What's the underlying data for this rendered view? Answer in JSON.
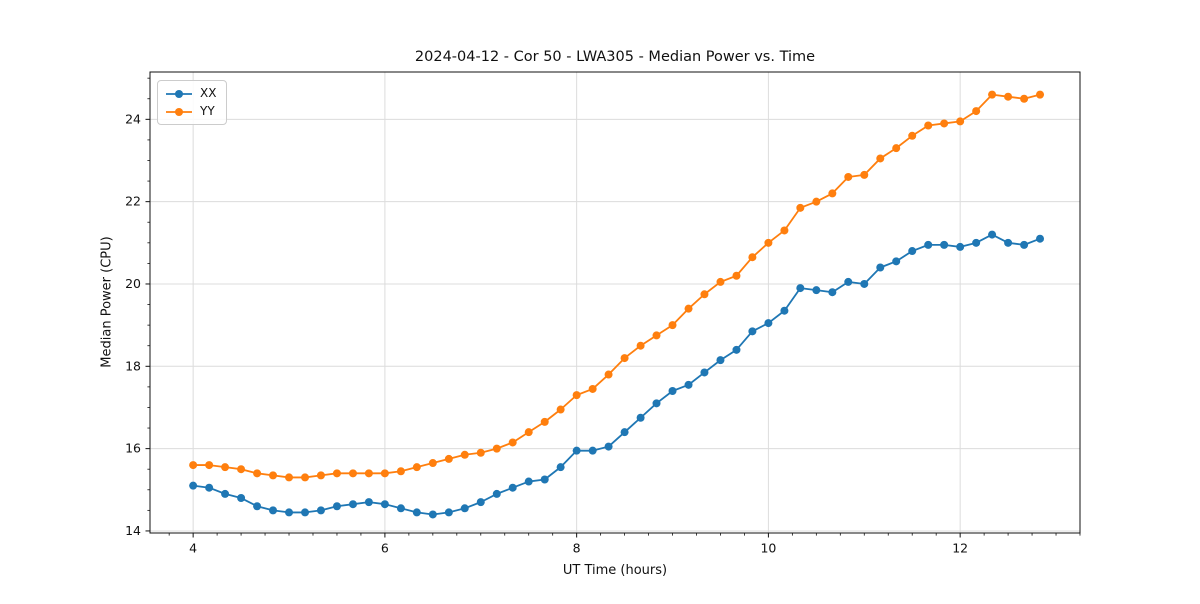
{
  "figure": {
    "title": "2024-04-12 - Cor 50 - LWA305 - Median Power vs. Time"
  },
  "chart_data": {
    "type": "line",
    "title": "2024-04-12 - Cor 50 - LWA305 - Median Power vs. Time",
    "xlabel": "UT Time (hours)",
    "ylabel": "Median Power (CPU)",
    "x": [
      4.0,
      4.167,
      4.333,
      4.5,
      4.667,
      4.833,
      5.0,
      5.167,
      5.333,
      5.5,
      5.667,
      5.833,
      6.0,
      6.167,
      6.333,
      6.5,
      6.667,
      6.833,
      7.0,
      7.167,
      7.333,
      7.5,
      7.667,
      7.833,
      8.0,
      8.167,
      8.333,
      8.5,
      8.667,
      8.833,
      9.0,
      9.167,
      9.333,
      9.5,
      9.667,
      9.833,
      10.0,
      10.167,
      10.333,
      10.5,
      10.667,
      10.833,
      11.0,
      11.167,
      11.333,
      11.5,
      11.667,
      11.833,
      12.0,
      12.167,
      12.333,
      12.5,
      12.667,
      12.833
    ],
    "series": [
      {
        "name": "XX",
        "color": "#1f77b4",
        "values": [
          15.1,
          15.05,
          14.9,
          14.8,
          14.6,
          14.5,
          14.45,
          14.45,
          14.5,
          14.6,
          14.65,
          14.7,
          14.65,
          14.55,
          14.45,
          14.4,
          14.45,
          14.55,
          14.7,
          14.9,
          15.05,
          15.2,
          15.25,
          15.55,
          15.95,
          15.95,
          16.05,
          16.4,
          16.75,
          17.1,
          17.4,
          17.55,
          17.85,
          18.15,
          18.4,
          18.85,
          19.05,
          19.35,
          19.9,
          19.85,
          19.8,
          20.05,
          20.0,
          20.4,
          20.55,
          20.8,
          20.95,
          20.95,
          20.9,
          21.0,
          21.2,
          21.0,
          20.95,
          21.1
        ]
      },
      {
        "name": "YY",
        "color": "#ff7f0e",
        "values": [
          15.6,
          15.6,
          15.55,
          15.5,
          15.4,
          15.35,
          15.3,
          15.3,
          15.35,
          15.4,
          15.4,
          15.4,
          15.4,
          15.45,
          15.55,
          15.65,
          15.75,
          15.85,
          15.9,
          16.0,
          16.15,
          16.4,
          16.65,
          16.95,
          17.3,
          17.45,
          17.8,
          18.2,
          18.5,
          18.75,
          19.0,
          19.4,
          19.75,
          20.05,
          20.2,
          20.65,
          21.0,
          21.3,
          21.85,
          22.0,
          22.2,
          22.6,
          22.65,
          23.05,
          23.3,
          23.6,
          23.85,
          23.9,
          23.95,
          24.2,
          24.6,
          24.55,
          24.5,
          24.6
        ]
      }
    ],
    "xlim": [
      3.55,
      13.25
    ],
    "ylim": [
      13.95,
      25.15
    ],
    "xticks": [
      4,
      6,
      8,
      10,
      12
    ],
    "yticks": [
      14,
      16,
      18,
      20,
      22,
      24
    ],
    "x_minor_step": 0.25,
    "y_minor_step": 0.5,
    "grid": true,
    "grid_color": "#dcdcdc",
    "legend": {
      "position": "upper left",
      "entries": [
        "XX",
        "YY"
      ]
    }
  }
}
